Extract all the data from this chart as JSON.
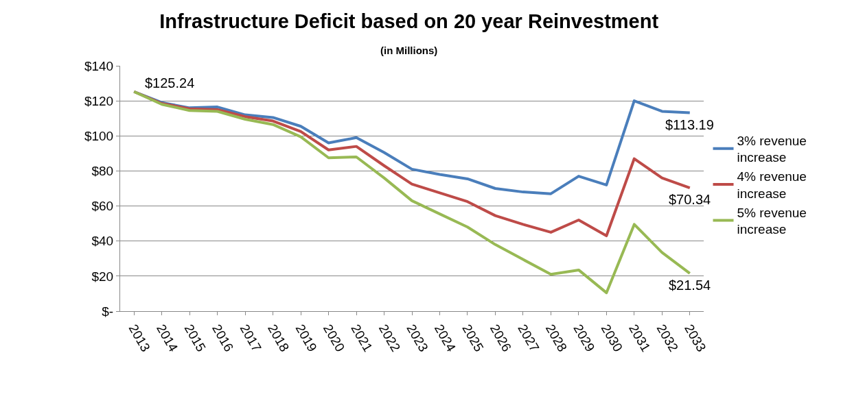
{
  "chart_data": {
    "type": "line",
    "title": "Infrastructure Deficit based on 20 year Reinvestment",
    "subtitle": "(in Millions)",
    "categories": [
      "2013",
      "2014",
      "2015",
      "2016",
      "2017",
      "2018",
      "2019",
      "2020",
      "2021",
      "2022",
      "2023",
      "2024",
      "2025",
      "2026",
      "2027",
      "2028",
      "2029",
      "2030",
      "2031",
      "2032",
      "2033"
    ],
    "series": [
      {
        "name": "3% revenue increase",
        "color": "#4a7ebb",
        "values": [
          125.24,
          119,
          116,
          116.5,
          112,
          110.5,
          105.5,
          96,
          99,
          90.5,
          81,
          78,
          75.5,
          70,
          68,
          67,
          77,
          72,
          120,
          114,
          113.19
        ]
      },
      {
        "name": "4% revenue increase",
        "color": "#be4b48",
        "values": [
          125.24,
          118.5,
          115.5,
          115,
          111,
          108.5,
          102.5,
          92,
          94,
          83,
          72.5,
          67.5,
          62.5,
          54.5,
          49.5,
          45,
          52,
          43,
          87,
          76,
          70.34
        ]
      },
      {
        "name": "5% revenue increase",
        "color": "#98b954",
        "values": [
          125.24,
          118,
          114.5,
          114,
          109.5,
          106.5,
          99.5,
          87.5,
          88,
          76,
          63,
          55.5,
          48,
          38,
          29.5,
          21,
          23.5,
          10.5,
          49.5,
          33.5,
          21.54
        ]
      }
    ],
    "annotations": [
      {
        "text": "$125.24",
        "x": "2013",
        "y": 125.24
      },
      {
        "text": "$113.19",
        "x": "2033",
        "y": 113.19
      },
      {
        "text": "$70.34",
        "x": "2033",
        "y": 70.34
      },
      {
        "text": "$21.54",
        "x": "2033",
        "y": 21.54
      }
    ],
    "ylim": [
      0,
      140
    ],
    "yticks": [
      {
        "value": 0,
        "label": "$-"
      },
      {
        "value": 20,
        "label": "$20"
      },
      {
        "value": 40,
        "label": "$40"
      },
      {
        "value": 60,
        "label": "$60"
      },
      {
        "value": 80,
        "label": "$80"
      },
      {
        "value": 100,
        "label": "$100"
      },
      {
        "value": 120,
        "label": "$120"
      },
      {
        "value": 140,
        "label": "$140"
      }
    ],
    "grid": "y",
    "legend": "right",
    "marker": "none",
    "line_style": "solid"
  }
}
